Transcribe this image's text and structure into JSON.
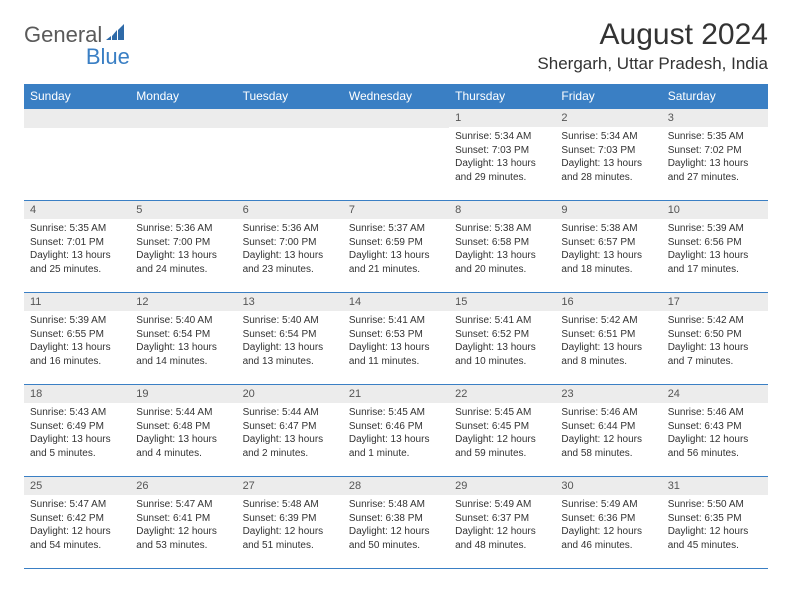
{
  "logo": {
    "text1": "General",
    "text2": "Blue"
  },
  "title": "August 2024",
  "location": "Shergarh, Uttar Pradesh, India",
  "colors": {
    "headerBg": "#3a7fc4",
    "headerText": "#ffffff",
    "dayNumBg": "#ececec",
    "borderColor": "#3a7fc4"
  },
  "dayHeaders": [
    "Sunday",
    "Monday",
    "Tuesday",
    "Wednesday",
    "Thursday",
    "Friday",
    "Saturday"
  ],
  "weeks": [
    [
      {
        "n": "",
        "sr": "",
        "ss": "",
        "dl": ""
      },
      {
        "n": "",
        "sr": "",
        "ss": "",
        "dl": ""
      },
      {
        "n": "",
        "sr": "",
        "ss": "",
        "dl": ""
      },
      {
        "n": "",
        "sr": "",
        "ss": "",
        "dl": ""
      },
      {
        "n": "1",
        "sr": "Sunrise: 5:34 AM",
        "ss": "Sunset: 7:03 PM",
        "dl": "Daylight: 13 hours and 29 minutes."
      },
      {
        "n": "2",
        "sr": "Sunrise: 5:34 AM",
        "ss": "Sunset: 7:03 PM",
        "dl": "Daylight: 13 hours and 28 minutes."
      },
      {
        "n": "3",
        "sr": "Sunrise: 5:35 AM",
        "ss": "Sunset: 7:02 PM",
        "dl": "Daylight: 13 hours and 27 minutes."
      }
    ],
    [
      {
        "n": "4",
        "sr": "Sunrise: 5:35 AM",
        "ss": "Sunset: 7:01 PM",
        "dl": "Daylight: 13 hours and 25 minutes."
      },
      {
        "n": "5",
        "sr": "Sunrise: 5:36 AM",
        "ss": "Sunset: 7:00 PM",
        "dl": "Daylight: 13 hours and 24 minutes."
      },
      {
        "n": "6",
        "sr": "Sunrise: 5:36 AM",
        "ss": "Sunset: 7:00 PM",
        "dl": "Daylight: 13 hours and 23 minutes."
      },
      {
        "n": "7",
        "sr": "Sunrise: 5:37 AM",
        "ss": "Sunset: 6:59 PM",
        "dl": "Daylight: 13 hours and 21 minutes."
      },
      {
        "n": "8",
        "sr": "Sunrise: 5:38 AM",
        "ss": "Sunset: 6:58 PM",
        "dl": "Daylight: 13 hours and 20 minutes."
      },
      {
        "n": "9",
        "sr": "Sunrise: 5:38 AM",
        "ss": "Sunset: 6:57 PM",
        "dl": "Daylight: 13 hours and 18 minutes."
      },
      {
        "n": "10",
        "sr": "Sunrise: 5:39 AM",
        "ss": "Sunset: 6:56 PM",
        "dl": "Daylight: 13 hours and 17 minutes."
      }
    ],
    [
      {
        "n": "11",
        "sr": "Sunrise: 5:39 AM",
        "ss": "Sunset: 6:55 PM",
        "dl": "Daylight: 13 hours and 16 minutes."
      },
      {
        "n": "12",
        "sr": "Sunrise: 5:40 AM",
        "ss": "Sunset: 6:54 PM",
        "dl": "Daylight: 13 hours and 14 minutes."
      },
      {
        "n": "13",
        "sr": "Sunrise: 5:40 AM",
        "ss": "Sunset: 6:54 PM",
        "dl": "Daylight: 13 hours and 13 minutes."
      },
      {
        "n": "14",
        "sr": "Sunrise: 5:41 AM",
        "ss": "Sunset: 6:53 PM",
        "dl": "Daylight: 13 hours and 11 minutes."
      },
      {
        "n": "15",
        "sr": "Sunrise: 5:41 AM",
        "ss": "Sunset: 6:52 PM",
        "dl": "Daylight: 13 hours and 10 minutes."
      },
      {
        "n": "16",
        "sr": "Sunrise: 5:42 AM",
        "ss": "Sunset: 6:51 PM",
        "dl": "Daylight: 13 hours and 8 minutes."
      },
      {
        "n": "17",
        "sr": "Sunrise: 5:42 AM",
        "ss": "Sunset: 6:50 PM",
        "dl": "Daylight: 13 hours and 7 minutes."
      }
    ],
    [
      {
        "n": "18",
        "sr": "Sunrise: 5:43 AM",
        "ss": "Sunset: 6:49 PM",
        "dl": "Daylight: 13 hours and 5 minutes."
      },
      {
        "n": "19",
        "sr": "Sunrise: 5:44 AM",
        "ss": "Sunset: 6:48 PM",
        "dl": "Daylight: 13 hours and 4 minutes."
      },
      {
        "n": "20",
        "sr": "Sunrise: 5:44 AM",
        "ss": "Sunset: 6:47 PM",
        "dl": "Daylight: 13 hours and 2 minutes."
      },
      {
        "n": "21",
        "sr": "Sunrise: 5:45 AM",
        "ss": "Sunset: 6:46 PM",
        "dl": "Daylight: 13 hours and 1 minute."
      },
      {
        "n": "22",
        "sr": "Sunrise: 5:45 AM",
        "ss": "Sunset: 6:45 PM",
        "dl": "Daylight: 12 hours and 59 minutes."
      },
      {
        "n": "23",
        "sr": "Sunrise: 5:46 AM",
        "ss": "Sunset: 6:44 PM",
        "dl": "Daylight: 12 hours and 58 minutes."
      },
      {
        "n": "24",
        "sr": "Sunrise: 5:46 AM",
        "ss": "Sunset: 6:43 PM",
        "dl": "Daylight: 12 hours and 56 minutes."
      }
    ],
    [
      {
        "n": "25",
        "sr": "Sunrise: 5:47 AM",
        "ss": "Sunset: 6:42 PM",
        "dl": "Daylight: 12 hours and 54 minutes."
      },
      {
        "n": "26",
        "sr": "Sunrise: 5:47 AM",
        "ss": "Sunset: 6:41 PM",
        "dl": "Daylight: 12 hours and 53 minutes."
      },
      {
        "n": "27",
        "sr": "Sunrise: 5:48 AM",
        "ss": "Sunset: 6:39 PM",
        "dl": "Daylight: 12 hours and 51 minutes."
      },
      {
        "n": "28",
        "sr": "Sunrise: 5:48 AM",
        "ss": "Sunset: 6:38 PM",
        "dl": "Daylight: 12 hours and 50 minutes."
      },
      {
        "n": "29",
        "sr": "Sunrise: 5:49 AM",
        "ss": "Sunset: 6:37 PM",
        "dl": "Daylight: 12 hours and 48 minutes."
      },
      {
        "n": "30",
        "sr": "Sunrise: 5:49 AM",
        "ss": "Sunset: 6:36 PM",
        "dl": "Daylight: 12 hours and 46 minutes."
      },
      {
        "n": "31",
        "sr": "Sunrise: 5:50 AM",
        "ss": "Sunset: 6:35 PM",
        "dl": "Daylight: 12 hours and 45 minutes."
      }
    ]
  ]
}
